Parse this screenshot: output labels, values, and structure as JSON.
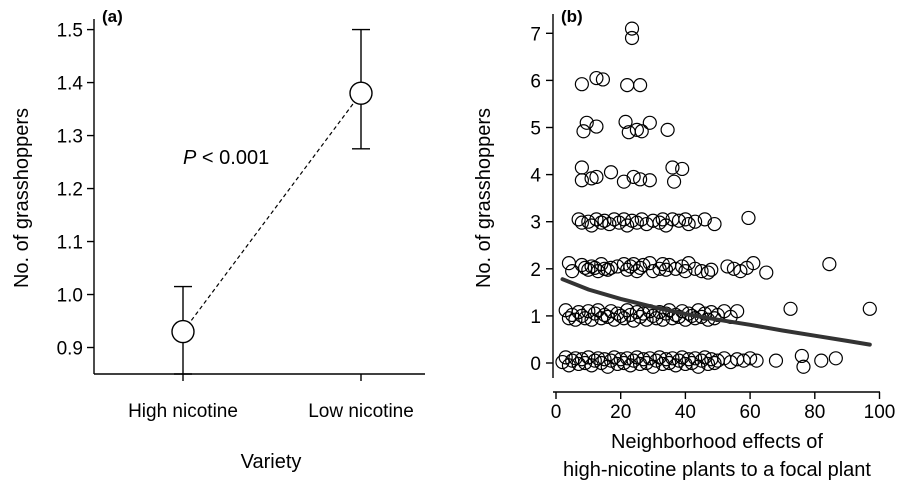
{
  "chart_data": [
    {
      "panel": "(a)",
      "type": "scatter",
      "xlabel": "Variety",
      "ylabel": "No. of grasshoppers",
      "categories": [
        "High nicotine",
        "Low nicotine"
      ],
      "means": [
        0.93,
        1.38
      ],
      "error_low": [
        0.85,
        1.275
      ],
      "error_high": [
        1.015,
        1.5
      ],
      "ylim": [
        0.85,
        1.52
      ],
      "yticks": [
        0.9,
        1.0,
        1.1,
        1.2,
        1.3,
        1.4,
        1.5
      ],
      "ytick_labels": [
        "0.9",
        "1.0",
        "1.1",
        "1.2",
        "1.3",
        "1.4",
        "1.5"
      ],
      "connector": "dashed",
      "annotation": {
        "italic": "P",
        "text": " < 0.001"
      },
      "grid": false
    },
    {
      "panel": "(b)",
      "type": "scatter",
      "xlabel_line1": "Neighborhood effects of",
      "xlabel_line2": "high-nicotine plants to a focal plant",
      "ylabel": "No. of grasshoppers",
      "xlim": [
        0,
        100
      ],
      "ylim": [
        -0.2,
        7.2
      ],
      "xticks": [
        0,
        20,
        40,
        60,
        80,
        100
      ],
      "xtick_labels": [
        "0",
        "20",
        "40",
        "60",
        "80",
        "100"
      ],
      "yticks": [
        0,
        1,
        2,
        3,
        4,
        5,
        6,
        7
      ],
      "ytick_labels": [
        "0",
        "1",
        "2",
        "3",
        "4",
        "5",
        "6",
        "7"
      ],
      "grid": false,
      "points": [
        [
          23.5,
          7.1
        ],
        [
          23.5,
          6.9
        ],
        [
          8,
          5.92
        ],
        [
          12.5,
          6.05
        ],
        [
          14.5,
          6.02
        ],
        [
          22,
          5.9
        ],
        [
          26,
          5.9
        ],
        [
          8.5,
          4.92
        ],
        [
          9.5,
          5.1
        ],
        [
          12.5,
          5.02
        ],
        [
          21.5,
          5.12
        ],
        [
          22.5,
          4.9
        ],
        [
          25,
          4.95
        ],
        [
          26.5,
          4.92
        ],
        [
          29,
          5.1
        ],
        [
          34.5,
          4.95
        ],
        [
          8,
          4.15
        ],
        [
          8,
          3.88
        ],
        [
          11,
          3.92
        ],
        [
          12.5,
          3.95
        ],
        [
          17,
          4.05
        ],
        [
          21,
          3.85
        ],
        [
          24,
          3.95
        ],
        [
          26,
          3.9
        ],
        [
          29,
          3.88
        ],
        [
          36,
          4.15
        ],
        [
          36.5,
          3.85
        ],
        [
          39,
          4.12
        ],
        [
          7,
          3.05
        ],
        [
          8,
          2.98
        ],
        [
          10,
          3.0
        ],
        [
          11,
          2.92
        ],
        [
          12.5,
          3.05
        ],
        [
          14,
          2.98
        ],
        [
          15,
          3.02
        ],
        [
          16.5,
          2.95
        ],
        [
          18,
          3.05
        ],
        [
          19.5,
          2.98
        ],
        [
          21,
          3.05
        ],
        [
          22,
          2.92
        ],
        [
          23.5,
          3.02
        ],
        [
          25,
          2.98
        ],
        [
          26.5,
          3.05
        ],
        [
          28,
          2.95
        ],
        [
          30,
          3.02
        ],
        [
          32,
          2.98
        ],
        [
          33,
          3.05
        ],
        [
          34,
          2.92
        ],
        [
          36,
          3.05
        ],
        [
          38,
          3.02
        ],
        [
          40,
          3.05
        ],
        [
          41,
          2.95
        ],
        [
          43,
          3.0
        ],
        [
          46,
          3.05
        ],
        [
          49,
          2.95
        ],
        [
          59.5,
          3.08
        ],
        [
          4,
          2.12
        ],
        [
          5,
          1.95
        ],
        [
          8,
          2.08
        ],
        [
          9,
          2.02
        ],
        [
          10,
          1.98
        ],
        [
          11,
          2.05
        ],
        [
          12,
          2.02
        ],
        [
          13,
          1.95
        ],
        [
          14,
          2.1
        ],
        [
          15,
          2.0
        ],
        [
          16,
          1.98
        ],
        [
          17,
          2.02
        ],
        [
          19,
          2.05
        ],
        [
          21,
          2.1
        ],
        [
          22,
          1.98
        ],
        [
          23,
          2.05
        ],
        [
          24,
          2.1
        ],
        [
          25,
          1.95
        ],
        [
          26,
          2.02
        ],
        [
          27,
          2.08
        ],
        [
          29,
          2.12
        ],
        [
          30,
          1.95
        ],
        [
          32,
          2.0
        ],
        [
          33,
          2.1
        ],
        [
          34,
          1.98
        ],
        [
          35,
          2.08
        ],
        [
          37,
          2.0
        ],
        [
          39,
          2.05
        ],
        [
          40,
          1.95
        ],
        [
          41,
          2.12
        ],
        [
          43,
          2.0
        ],
        [
          45,
          1.95
        ],
        [
          47,
          1.92
        ],
        [
          48,
          1.98
        ],
        [
          53,
          2.05
        ],
        [
          55,
          2.0
        ],
        [
          57,
          1.95
        ],
        [
          59,
          2.02
        ],
        [
          61,
          2.12
        ],
        [
          65,
          1.92
        ],
        [
          84.5,
          2.1
        ],
        [
          3,
          1.12
        ],
        [
          4,
          0.95
        ],
        [
          5,
          1.02
        ],
        [
          6,
          0.92
        ],
        [
          7,
          1.08
        ],
        [
          8,
          1.0
        ],
        [
          9,
          0.95
        ],
        [
          10,
          1.1
        ],
        [
          11,
          0.92
        ],
        [
          12,
          1.05
        ],
        [
          13,
          1.12
        ],
        [
          14,
          0.95
        ],
        [
          15,
          1.02
        ],
        [
          16,
          0.98
        ],
        [
          17,
          1.1
        ],
        [
          18,
          0.92
        ],
        [
          19,
          1.05
        ],
        [
          20,
          1.0
        ],
        [
          21,
          0.95
        ],
        [
          22,
          1.12
        ],
        [
          23,
          1.02
        ],
        [
          24,
          0.9
        ],
        [
          25,
          1.08
        ],
        [
          26,
          0.98
        ],
        [
          27,
          1.05
        ],
        [
          28,
          0.92
        ],
        [
          29,
          1.1
        ],
        [
          30,
          1.0
        ],
        [
          31,
          0.95
        ],
        [
          32,
          1.08
        ],
        [
          33,
          0.92
        ],
        [
          34,
          1.05
        ],
        [
          35,
          1.12
        ],
        [
          36,
          0.95
        ],
        [
          37,
          1.02
        ],
        [
          38,
          0.98
        ],
        [
          39,
          1.1
        ],
        [
          40,
          0.92
        ],
        [
          41,
          1.05
        ],
        [
          42,
          1.0
        ],
        [
          43,
          0.95
        ],
        [
          44,
          1.12
        ],
        [
          45,
          0.98
        ],
        [
          46,
          1.05
        ],
        [
          47,
          0.92
        ],
        [
          48,
          1.08
        ],
        [
          49,
          0.95
        ],
        [
          50,
          1.02
        ],
        [
          52,
          1.1
        ],
        [
          54,
          0.98
        ],
        [
          56,
          1.1
        ],
        [
          72.5,
          1.15
        ],
        [
          97,
          1.15
        ],
        [
          2,
          0.02
        ],
        [
          3,
          0.12
        ],
        [
          4,
          -0.05
        ],
        [
          5,
          0.05
        ],
        [
          6,
          0.1
        ],
        [
          7,
          -0.02
        ],
        [
          8,
          0.08
        ],
        [
          9,
          0.0
        ],
        [
          10,
          0.12
        ],
        [
          11,
          -0.05
        ],
        [
          12,
          0.05
        ],
        [
          13,
          0.1
        ],
        [
          14,
          0.0
        ],
        [
          15,
          0.08
        ],
        [
          16,
          -0.08
        ],
        [
          17,
          0.05
        ],
        [
          18,
          0.12
        ],
        [
          19,
          -0.02
        ],
        [
          20,
          0.08
        ],
        [
          21,
          0.0
        ],
        [
          22,
          0.1
        ],
        [
          23,
          -0.05
        ],
        [
          24,
          0.05
        ],
        [
          25,
          0.12
        ],
        [
          26,
          -0.02
        ],
        [
          27,
          0.08
        ],
        [
          28,
          0.0
        ],
        [
          29,
          0.1
        ],
        [
          30,
          -0.08
        ],
        [
          31,
          0.05
        ],
        [
          32,
          0.12
        ],
        [
          33,
          -0.02
        ],
        [
          34,
          0.08
        ],
        [
          35,
          0.0
        ],
        [
          36,
          0.1
        ],
        [
          37,
          -0.05
        ],
        [
          38,
          0.05
        ],
        [
          39,
          0.12
        ],
        [
          40,
          -0.02
        ],
        [
          41,
          0.08
        ],
        [
          42,
          0.0
        ],
        [
          43,
          0.1
        ],
        [
          44,
          -0.08
        ],
        [
          45,
          0.05
        ],
        [
          46,
          0.12
        ],
        [
          47,
          -0.02
        ],
        [
          48,
          0.08
        ],
        [
          49,
          0.0
        ],
        [
          50,
          0.05
        ],
        [
          52,
          0.1
        ],
        [
          54,
          0.02
        ],
        [
          56,
          0.08
        ],
        [
          58,
          0.05
        ],
        [
          60,
          0.1
        ],
        [
          62,
          0.05
        ],
        [
          68,
          0.05
        ],
        [
          76,
          0.15
        ],
        [
          76.5,
          -0.08
        ],
        [
          82,
          0.05
        ],
        [
          86.5,
          0.1
        ]
      ],
      "trend": {
        "x": [
          2,
          10,
          20,
          30,
          40,
          50,
          60,
          70,
          80,
          90,
          97
        ],
        "y": [
          1.78,
          1.56,
          1.36,
          1.19,
          1.04,
          0.92,
          0.81,
          0.69,
          0.58,
          0.47,
          0.39
        ]
      }
    }
  ]
}
